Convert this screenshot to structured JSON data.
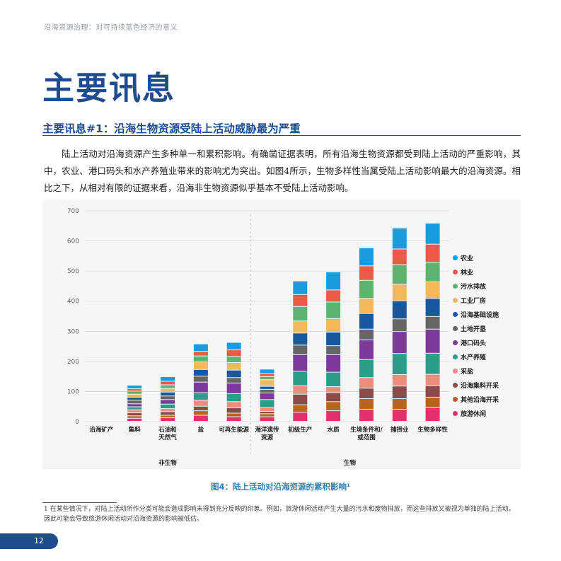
{
  "header": {
    "running_title": "沿海资源治理：对可持续蓝色经济的意义"
  },
  "page": {
    "title": "主要讯息",
    "section_heading": "主要讯息#1：沿海生物资源受陆上活动威胁最为严重",
    "body": "陆上活动对沿海资源产生多种单一和累积影响。有确凿证据表明，所有沿海生物资源都受到陆上活动的严重影响，其中，农业、港口码头和水产养殖业带来的影响尤为突出。如图4所示，生物多样性当属受陆上活动影响最大的沿海资源。相比之下，从相对有限的证据来看，沿海非生物资源似乎基本不受陆上活动影响。",
    "figure_caption": "图4：陆上活动对沿海资源的累积影响¹",
    "footnote": "1 在某些情况下，对陆上活动所作分类可能会造成影响未得到充分反映的印象。例如，旅游休闲活动产生大量的污水和废物排放，而这些排放又被视为单独的陆上活动，因此可能会导致旅游休闲活动对沿海资源的影响被低估。",
    "page_number": "12"
  },
  "chart_data": {
    "type": "bar",
    "stacked": true,
    "title": "",
    "xlabel": "",
    "ylabel": "",
    "ylim": [
      0,
      700
    ],
    "yticks": [
      0,
      100,
      200,
      300,
      400,
      500,
      600,
      700
    ],
    "categories": [
      "沿海矿产",
      "集料",
      "石油和\n天然气",
      "盐",
      "可再生能源",
      "海洋遗传\n资源",
      "初级生产",
      "水质",
      "生境条件和/\n或范围",
      "捕捞业",
      "生物多样性"
    ],
    "groups": [
      {
        "label": "非生物",
        "categories": [
          "沿海矿产",
          "集料",
          "石油和\n天然气",
          "盐",
          "可再生能源"
        ]
      },
      {
        "label": "生物",
        "categories": [
          "海洋遗传\n资源",
          "初级生产",
          "水质",
          "生境条件和/\n或范围",
          "捕捞业",
          "生物多样性"
        ]
      }
    ],
    "series": [
      {
        "name": "旅游休闲",
        "color": "#e0336e",
        "values": [
          0,
          10,
          12,
          20,
          15,
          15,
          30,
          35,
          40,
          40,
          45
        ]
      },
      {
        "name": "其他沿海开采",
        "color": "#b8651b",
        "values": [
          0,
          8,
          8,
          15,
          12,
          10,
          25,
          30,
          35,
          35,
          35
        ]
      },
      {
        "name": "沿海集料开采",
        "color": "#8c4a4a",
        "values": [
          0,
          10,
          12,
          15,
          18,
          8,
          35,
          30,
          35,
          42,
          38
        ]
      },
      {
        "name": "采盐",
        "color": "#ef8c7e",
        "values": [
          0,
          10,
          10,
          20,
          20,
          12,
          28,
          20,
          35,
          38,
          38
        ]
      },
      {
        "name": "水产养殖",
        "color": "#2b9e8a",
        "values": [
          0,
          10,
          15,
          25,
          27,
          27,
          48,
          48,
          60,
          70,
          70
        ]
      },
      {
        "name": "港口码头",
        "color": "#7b3a9c",
        "values": [
          0,
          10,
          15,
          35,
          35,
          22,
          55,
          58,
          65,
          73,
          80
        ]
      },
      {
        "name": "土地开垦",
        "color": "#666666",
        "values": [
          0,
          12,
          12,
          20,
          18,
          12,
          32,
          30,
          36,
          42,
          42
        ]
      },
      {
        "name": "沿海基础设施",
        "color": "#17599e",
        "values": [
          0,
          10,
          13,
          22,
          25,
          10,
          40,
          45,
          52,
          60,
          60
        ]
      },
      {
        "name": "工业厂房",
        "color": "#f5b859",
        "values": [
          0,
          10,
          12,
          25,
          25,
          22,
          40,
          45,
          50,
          55,
          55
        ]
      },
      {
        "name": "污水排放",
        "color": "#5cb56e",
        "values": [
          0,
          10,
          12,
          20,
          20,
          10,
          48,
          55,
          60,
          65,
          65
        ]
      },
      {
        "name": "林业",
        "color": "#eb5a47",
        "values": [
          0,
          8,
          12,
          15,
          22,
          10,
          40,
          40,
          48,
          52,
          60
        ]
      },
      {
        "name": "农业",
        "color": "#1a9be0",
        "values": [
          0,
          12,
          15,
          25,
          25,
          15,
          45,
          60,
          60,
          70,
          70
        ]
      }
    ],
    "legend_order": [
      "农业",
      "林业",
      "污水排放",
      "工业厂房",
      "沿海基础设施",
      "土地开垦",
      "港口码头",
      "水产养殖",
      "采盐",
      "沿海集料开采",
      "其他沿海开采",
      "旅游休闲"
    ],
    "legend_position": "right",
    "grid": true
  }
}
